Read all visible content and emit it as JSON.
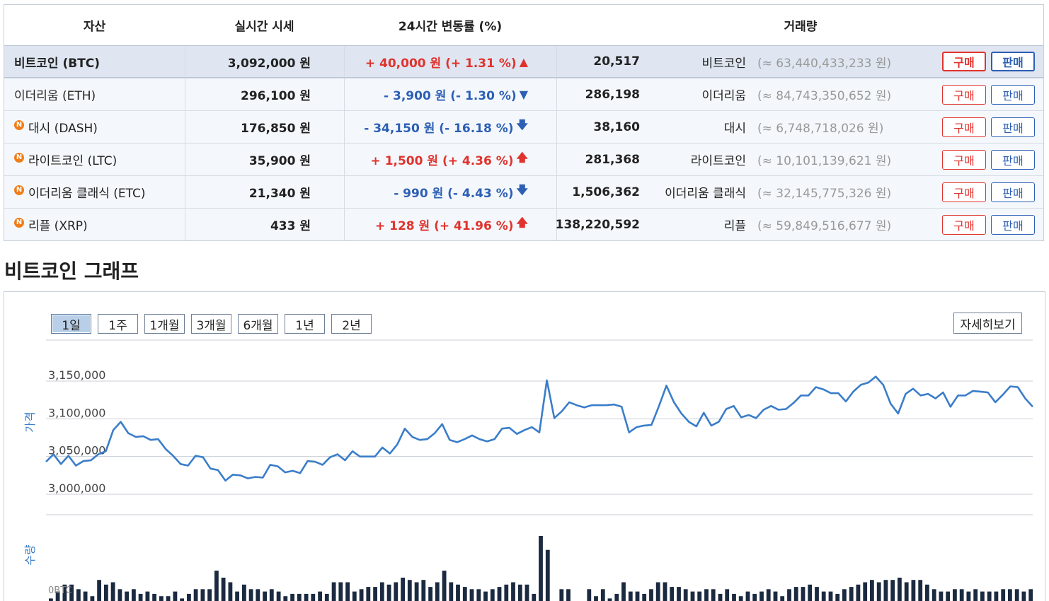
{
  "table": {
    "headers": {
      "asset": "자산",
      "price": "실시간 시세",
      "change": "24시간 변동률 (%)",
      "volume": "거래량"
    },
    "rows": [
      {
        "name": "비트코인 (BTC)",
        "badge": "",
        "price": "3,092,000 원",
        "change": "+ 40,000 원 (+ 1.31 %)",
        "direction": "up",
        "arrow": "▲",
        "volume": "20,517",
        "volume_name": "비트코인",
        "volume_krw": "(≈ 63,440,433,233 원)",
        "buy": "구매",
        "sell": "판매",
        "active": true
      },
      {
        "name": "이더리움 (ETH)",
        "badge": "",
        "price": "296,100 원",
        "change": "- 3,900 원 (- 1.30 %)",
        "direction": "down",
        "arrow": "▼",
        "volume": "286,198",
        "volume_name": "이더리움",
        "volume_krw": "(≈ 84,743,350,652 원)",
        "buy": "구매",
        "sell": "판매",
        "active": false
      },
      {
        "name": "대시 (DASH)",
        "badge": "N",
        "price": "176,850 원",
        "change": "- 34,150 원 (- 16.18 %)",
        "direction": "down",
        "arrow": "🡇",
        "volume": "38,160",
        "volume_name": "대시",
        "volume_krw": "(≈ 6,748,718,026 원)",
        "buy": "구매",
        "sell": "판매",
        "active": false
      },
      {
        "name": "라이트코인 (LTC)",
        "badge": "N",
        "price": "35,900 원",
        "change": "+ 1,500 원 (+ 4.36 %)",
        "direction": "up",
        "arrow": "🡅",
        "volume": "281,368",
        "volume_name": "라이트코인",
        "volume_krw": "(≈ 10,101,139,621 원)",
        "buy": "구매",
        "sell": "판매",
        "active": false
      },
      {
        "name": "이더리움 클래식 (ETC)",
        "badge": "N",
        "price": "21,340 원",
        "change": "- 990 원 (- 4.43 %)",
        "direction": "down",
        "arrow": "🡇",
        "volume": "1,506,362",
        "volume_name": "이더리움 클래식",
        "volume_krw": "(≈ 32,145,775,326 원)",
        "buy": "구매",
        "sell": "판매",
        "active": false
      },
      {
        "name": "리플 (XRP)",
        "badge": "N",
        "price": "433 원",
        "change": "+ 128 원 (+ 41.96 %)",
        "direction": "up",
        "arrow": "🡅",
        "volume": "138,220,592",
        "volume_name": "리플",
        "volume_krw": "(≈ 59,849,516,677 원)",
        "buy": "구매",
        "sell": "판매",
        "active": false
      }
    ]
  },
  "graph": {
    "title": "비트코인 그래프",
    "ranges": [
      {
        "label": "1일",
        "active": true
      },
      {
        "label": "1주",
        "active": false
      },
      {
        "label": "1개월",
        "active": false
      },
      {
        "label": "3개월",
        "active": false
      },
      {
        "label": "6개월",
        "active": false
      },
      {
        "label": "1년",
        "active": false
      },
      {
        "label": "2년",
        "active": false
      }
    ],
    "detail_label": "자세히보기"
  },
  "colors": {
    "up": "#e0332e",
    "down": "#2d5fb4",
    "line": "#3a7dc9",
    "bar": "#1b2a40",
    "badge": "#f07d18"
  },
  "chart_data": {
    "type": "line",
    "ylabel": "가격",
    "ylim": [
      3000000,
      3150000
    ],
    "yticks": [
      "3,150,000",
      "3,100,000",
      "3,050,000",
      "3,000,000"
    ],
    "grid": true,
    "series": [
      {
        "values": [
          3043000,
          3053000,
          3040000,
          3051000,
          3038000,
          3044000,
          3045000,
          3053000,
          3057000,
          3085000,
          3096000,
          3081000,
          3076000,
          3077000,
          3072000,
          3073000,
          3060000,
          3051000,
          3040000,
          3038000,
          3051000,
          3049000,
          3034000,
          3032000,
          3018000,
          3026000,
          3025000,
          3021000,
          3023000,
          3022000,
          3039000,
          3037000,
          3029000,
          3031000,
          3028000,
          3044000,
          3043000,
          3039000,
          3049000,
          3053000,
          3045000,
          3057000,
          3050000,
          3050000,
          3050000,
          3062000,
          3054000,
          3066000,
          3087000,
          3076000,
          3072000,
          3073000,
          3081000,
          3093000,
          3072000,
          3069000,
          3073000,
          3078000,
          3073000,
          3070000,
          3073000,
          3087000,
          3088000,
          3080000,
          3085000,
          3089000,
          3082000,
          3151000,
          3101000,
          3110000,
          3122000,
          3118000,
          3115000,
          3118000,
          3118000,
          3118000,
          3119000,
          3116000,
          3082000,
          3089000,
          3091000,
          3092000,
          3117000,
          3144000,
          3122000,
          3107000,
          3096000,
          3090000,
          3108000,
          3091000,
          3096000,
          3113000,
          3117000,
          3102000,
          3105000,
          3101000,
          3112000,
          3117000,
          3112000,
          3113000,
          3121000,
          3131000,
          3131000,
          3142000,
          3139000,
          3134000,
          3134000,
          3123000,
          3136000,
          3145000,
          3148000,
          3156000,
          3145000,
          3120000,
          3107000,
          3133000,
          3140000,
          3131000,
          3133000,
          3127000,
          3135000,
          3116000,
          3131000,
          3131000,
          3137000,
          3136000,
          3135000,
          3122000,
          3132000,
          3143000,
          3142000,
          3127000,
          3116000
        ]
      }
    ],
    "volume": {
      "ylabel": "수량",
      "unit_label": "0BTC",
      "values": [
        2,
        5,
        8,
        8,
        6,
        5,
        3,
        10,
        8,
        9,
        6,
        5,
        6,
        4,
        5,
        4,
        3,
        3,
        5,
        2,
        4,
        6,
        6,
        6,
        14,
        11,
        9,
        5,
        8,
        6,
        6,
        5,
        6,
        5,
        3,
        4,
        4,
        4,
        4,
        5,
        4,
        9,
        9,
        9,
        5,
        6,
        7,
        7,
        9,
        8,
        9,
        11,
        10,
        9,
        10,
        7,
        9,
        14,
        9,
        8,
        7,
        6,
        6,
        5,
        6,
        7,
        8,
        9,
        8,
        8,
        4,
        29,
        23,
        0,
        6,
        6,
        0,
        0,
        6,
        3,
        6,
        2,
        4,
        9,
        5,
        5,
        4,
        6,
        9,
        9,
        7,
        7,
        6,
        5,
        5,
        6,
        6,
        4,
        6,
        4,
        3,
        5,
        4,
        5,
        6,
        5,
        3,
        6,
        7,
        7,
        8,
        7,
        5,
        5,
        4,
        6,
        7,
        8,
        9,
        10,
        9,
        10,
        10,
        11,
        9,
        10,
        10,
        8,
        6,
        5,
        5,
        6,
        6,
        5,
        6,
        5,
        5,
        5,
        6,
        6,
        6,
        5,
        6
      ]
    }
  }
}
